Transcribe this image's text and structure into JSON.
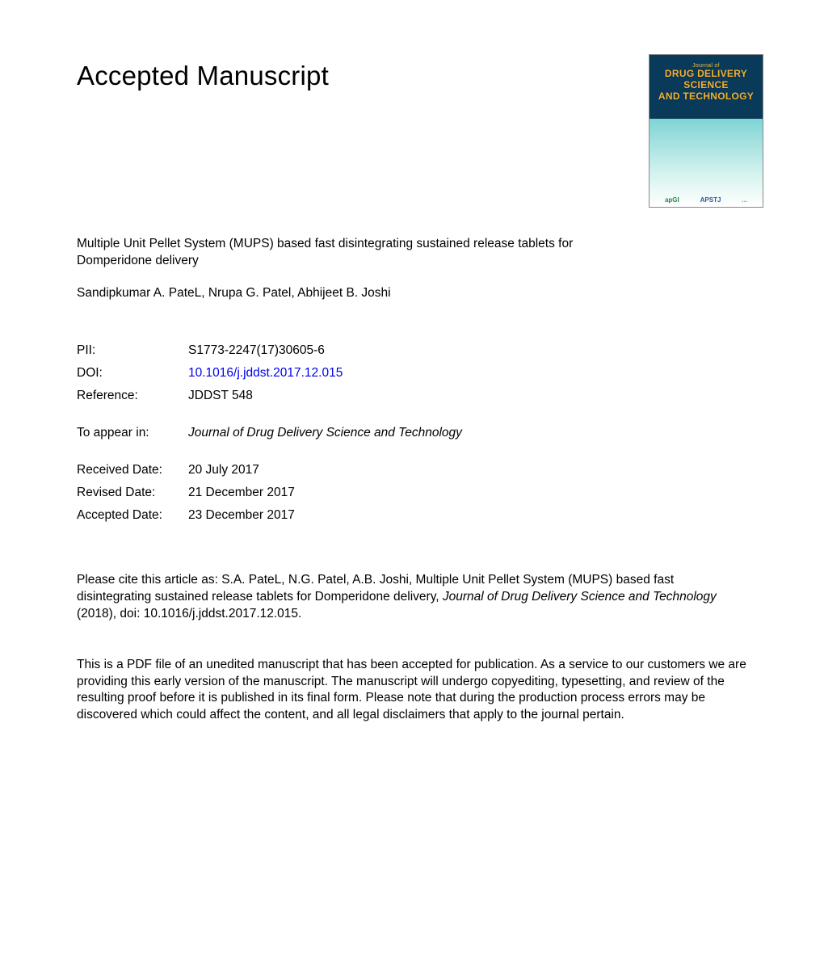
{
  "header": {
    "title": "Accepted Manuscript"
  },
  "cover": {
    "journal_small": "Journal of",
    "journal_line1": "DRUG DELIVERY",
    "journal_line2": "SCIENCE",
    "journal_line3": "AND TECHNOLOGY",
    "badge1": "apGI",
    "badge2": "APSTJ",
    "badge3": "..."
  },
  "article": {
    "title": "Multiple Unit Pellet System (MUPS) based fast disintegrating sustained release tablets for Domperidone delivery",
    "authors": "Sandipkumar A. PateL, Nrupa G. Patel, Abhijeet B. Joshi"
  },
  "meta": {
    "pii_label": "PII:",
    "pii": "S1773-2247(17)30605-6",
    "doi_label": "DOI:",
    "doi": "10.1016/j.jddst.2017.12.015",
    "ref_label": "Reference:",
    "ref": "JDDST 548",
    "appear_label": "To appear in:",
    "appear": "Journal of Drug Delivery Science and Technology",
    "received_label": "Received Date:",
    "received": "20 July 2017",
    "revised_label": "Revised Date:",
    "revised": "21 December 2017",
    "accepted_label": "Accepted Date:",
    "accepted": "23 December 2017"
  },
  "citation": {
    "prefix": "Please cite this article as: S.A. PateL, N.G. Patel, A.B. Joshi, Multiple Unit Pellet System (MUPS) based fast disintegrating sustained release tablets for Domperidone delivery, ",
    "journal": "Journal of Drug Delivery Science and Technology",
    "suffix": " (2018), doi: 10.1016/j.jddst.2017.12.015."
  },
  "disclaimer": "This is a PDF file of an unedited manuscript that has been accepted for publication. As a service to our customers we are providing this early version of the manuscript. The manuscript will undergo copyediting, typesetting, and review of the resulting proof before it is published in its final form. Please note that during the production process errors may be discovered which could affect the content, and all legal disclaimers that apply to the journal pertain.",
  "colors": {
    "link": "#0000ee",
    "text": "#000000",
    "bg": "#ffffff"
  }
}
